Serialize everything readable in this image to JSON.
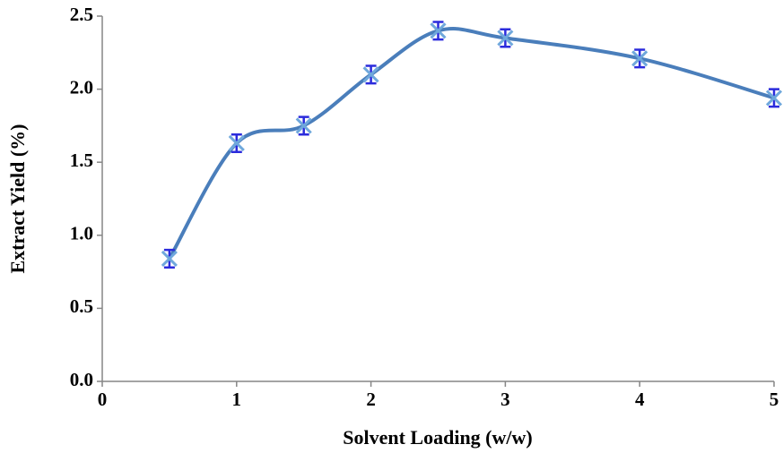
{
  "chart_data": {
    "type": "line",
    "x_label": "Solvent Loading (w/w)",
    "y_label": "Extract Yield (%)",
    "x": [
      0.5,
      1,
      1.5,
      2,
      2.5,
      3,
      4,
      5
    ],
    "series": [
      {
        "color": "#4a7ebb",
        "marker_color": "#6fa8dc",
        "error_color": "#2b2bdc",
        "values": [
          0.84,
          1.63,
          1.75,
          2.1,
          2.4,
          2.35,
          2.21,
          1.94
        ],
        "errors": [
          0.06,
          0.06,
          0.06,
          0.06,
          0.06,
          0.06,
          0.06,
          0.06
        ]
      }
    ],
    "xlim": [
      0,
      5
    ],
    "xticks": [
      0,
      1,
      2,
      3,
      4,
      5
    ],
    "ylim": [
      0,
      2.5
    ],
    "yticks": [
      {
        "value": 0,
        "label": "0.0"
      },
      0.5,
      {
        "value": 1,
        "label": "1.0"
      },
      1.5,
      {
        "value": 2,
        "label": "2.0"
      },
      2.5
    ],
    "axis_color": "#868686"
  }
}
